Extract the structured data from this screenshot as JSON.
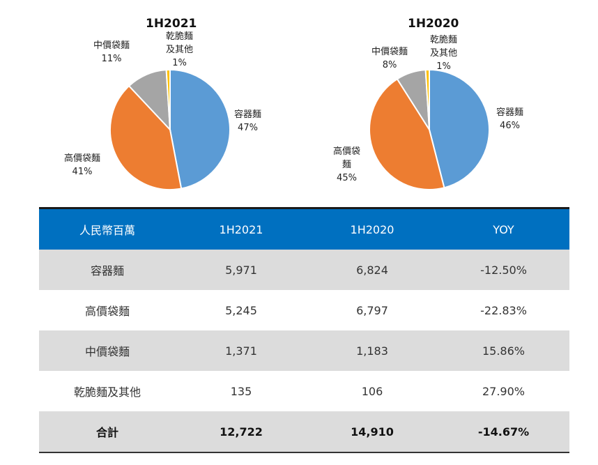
{
  "chart_data": [
    {
      "type": "pie",
      "title": "1H2021",
      "slices": [
        {
          "name": "容器麵",
          "value": 47,
          "label": "47%",
          "color": "#5b9bd5"
        },
        {
          "name": "高價袋麵",
          "value": 41,
          "label": "41%",
          "color": "#ed7d31"
        },
        {
          "name": "中價袋麵",
          "value": 11,
          "label": "11%",
          "color": "#a5a5a5"
        },
        {
          "name": "乾脆麵及其他",
          "value": 1,
          "label": "1%",
          "color": "#ffc000"
        }
      ]
    },
    {
      "type": "pie",
      "title": "1H2020",
      "slices": [
        {
          "name": "容器麵",
          "value": 46,
          "label": "46%",
          "color": "#5b9bd5"
        },
        {
          "name": "高價袋麵",
          "value": 45,
          "label": "45%",
          "color": "#ed7d31"
        },
        {
          "name": "中價袋麵",
          "value": 8,
          "label": "8%",
          "color": "#a5a5a5"
        },
        {
          "name": "乾脆麵及其他",
          "value": 1,
          "label": "1%",
          "color": "#ffc000"
        }
      ]
    }
  ],
  "label_text": {
    "pie1": {
      "s0": "容器麵",
      "s1": "高價袋麵",
      "s2": "中價袋麵",
      "s3a": "乾脆麵",
      "s3b": "及其他"
    },
    "pie2": {
      "s0": "容器麵",
      "s1a": "高價袋",
      "s1b": "麵",
      "s2": "中價袋麵",
      "s3a": "乾脆麵",
      "s3b": "及其他"
    }
  },
  "table": {
    "headers": [
      "人民幣百萬",
      "1H2021",
      "1H2020",
      "YOY"
    ],
    "rows": [
      [
        "容器麵",
        "5,971",
        "6,824",
        "-12.50%"
      ],
      [
        "高價袋麵",
        "5,245",
        "6,797",
        "-22.83%"
      ],
      [
        "中價袋麵",
        "1,371",
        "1,183",
        "15.86%"
      ],
      [
        "乾脆麵及其他",
        "135",
        "106",
        "27.90%"
      ],
      [
        "合計",
        "12,722",
        "14,910",
        "-14.67%"
      ]
    ]
  }
}
